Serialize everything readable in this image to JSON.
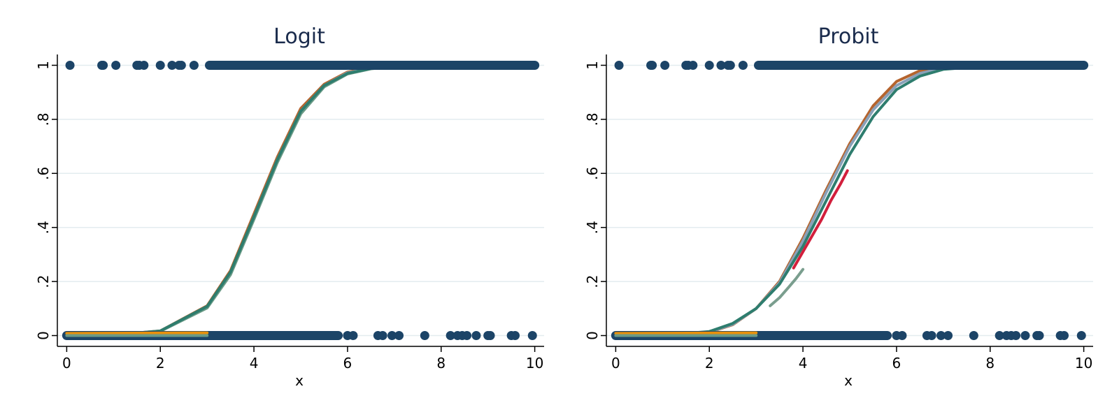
{
  "colors": {
    "background": "#ffffff",
    "grid": "#e3ecef",
    "points": "#1c4467",
    "title": "#1a2b4c"
  },
  "chart_data": [
    {
      "type": "scatter",
      "title": "Logit",
      "xlabel": "x",
      "ylabel": "",
      "xlim": [
        -0.2,
        10.2
      ],
      "ylim": [
        -0.04,
        1.04
      ],
      "xticks": [
        0,
        2,
        4,
        6,
        8,
        10
      ],
      "xtick_labels": [
        "0",
        "2",
        "4",
        "6",
        "8",
        "10"
      ],
      "yticks": [
        0,
        0.2,
        0.4,
        0.6,
        0.8,
        1
      ],
      "ytick_labels": [
        "0",
        ".2",
        ".4",
        ".6",
        ".8",
        "1"
      ],
      "grid": true,
      "points": {
        "color": "#1c4467",
        "y1_isolated_x": [
          0.07,
          0.75,
          0.78,
          1.05,
          1.5,
          1.55,
          1.65,
          2.0,
          2.25,
          2.4,
          2.45,
          2.72
        ],
        "y1_dense_range": [
          3.05,
          10.0
        ],
        "y0_dense_range": [
          0.0,
          5.8
        ],
        "y0_isolated_x": [
          6.0,
          6.12,
          6.65,
          6.75,
          6.95,
          7.1,
          7.65,
          8.2,
          8.35,
          8.45,
          8.55,
          8.75,
          9.0,
          9.05,
          9.5,
          9.58,
          9.95
        ]
      },
      "series": [
        {
          "color": "#b5642e",
          "x": [
            0,
            1,
            2,
            3,
            3.5,
            4,
            4.5,
            5,
            5.5,
            6,
            6.5,
            7,
            8,
            10
          ],
          "y": [
            0.0003,
            0.0025,
            0.017,
            0.11,
            0.24,
            0.45,
            0.66,
            0.84,
            0.93,
            0.975,
            0.99,
            0.996,
            0.9995,
            1.0
          ]
        },
        {
          "color": "#8aa0b8",
          "x": [
            0,
            1,
            2,
            3,
            3.5,
            4,
            4.5,
            5,
            5.5,
            6,
            6.5,
            7,
            8,
            10
          ],
          "y": [
            0.0003,
            0.0024,
            0.016,
            0.105,
            0.23,
            0.44,
            0.65,
            0.83,
            0.925,
            0.972,
            0.989,
            0.996,
            0.9995,
            1.0
          ]
        },
        {
          "color": "#6a9a86",
          "x": [
            0,
            1,
            2,
            3,
            3.5,
            4,
            4.5,
            5,
            5.5,
            6,
            6.5,
            7,
            8,
            10
          ],
          "y": [
            0.0003,
            0.0023,
            0.016,
            0.102,
            0.225,
            0.43,
            0.64,
            0.82,
            0.92,
            0.968,
            0.987,
            0.995,
            0.9994,
            1.0
          ]
        },
        {
          "color": "#2e7d6e",
          "x": [
            0,
            1,
            2,
            3,
            3.5,
            4,
            4.5,
            5,
            5.5,
            6,
            6.5,
            7,
            8,
            10
          ],
          "y": [
            0.0003,
            0.0025,
            0.017,
            0.108,
            0.235,
            0.44,
            0.65,
            0.83,
            0.925,
            0.97,
            0.988,
            0.995,
            0.9993,
            1.0
          ]
        },
        {
          "color": "#e8900c",
          "x": [
            0,
            3
          ],
          "y": [
            0.008,
            0.01
          ]
        },
        {
          "color": "#6a9a86",
          "x": [
            0,
            3
          ],
          "y": [
            0.0,
            0.0
          ]
        }
      ]
    },
    {
      "type": "scatter",
      "title": "Probit",
      "xlabel": "x",
      "ylabel": "",
      "xlim": [
        -0.2,
        10.2
      ],
      "ylim": [
        -0.04,
        1.04
      ],
      "xticks": [
        0,
        2,
        4,
        6,
        8,
        10
      ],
      "xtick_labels": [
        "0",
        "2",
        "4",
        "6",
        "8",
        "10"
      ],
      "yticks": [
        0,
        0.2,
        0.4,
        0.6,
        0.8,
        1
      ],
      "ytick_labels": [
        "0",
        ".2",
        ".4",
        ".6",
        ".8",
        "1"
      ],
      "grid": true,
      "points": {
        "color": "#1c4467",
        "y1_isolated_x": [
          0.07,
          0.75,
          0.78,
          1.05,
          1.5,
          1.55,
          1.65,
          2.0,
          2.25,
          2.4,
          2.45,
          2.72
        ],
        "y1_dense_range": [
          3.05,
          10.0
        ],
        "y0_dense_range": [
          0.0,
          5.8
        ],
        "y0_isolated_x": [
          6.0,
          6.12,
          6.65,
          6.75,
          6.95,
          7.1,
          7.65,
          8.2,
          8.35,
          8.45,
          8.55,
          8.75,
          9.0,
          9.05,
          9.5,
          9.58,
          9.95
        ]
      },
      "series": [
        {
          "color": "#b5642e",
          "x": [
            0,
            1,
            2,
            2.5,
            3,
            3.5,
            4,
            4.5,
            5,
            5.5,
            6,
            6.5,
            7,
            8,
            10
          ],
          "y": [
            0.0,
            0.0,
            0.012,
            0.04,
            0.1,
            0.2,
            0.36,
            0.54,
            0.71,
            0.85,
            0.94,
            0.98,
            0.995,
            1.0,
            1.0
          ]
        },
        {
          "color": "#8aa0b8",
          "x": [
            0,
            1,
            2,
            2.5,
            3,
            3.5,
            4,
            4.5,
            5,
            5.5,
            6,
            6.5,
            7,
            8,
            10
          ],
          "y": [
            0.0,
            0.001,
            0.013,
            0.042,
            0.1,
            0.195,
            0.35,
            0.53,
            0.7,
            0.835,
            0.925,
            0.97,
            0.99,
            0.999,
            1.0
          ]
        },
        {
          "color": "#2e7d6e",
          "x": [
            0,
            1,
            2,
            2.5,
            3,
            3.5,
            4,
            4.5,
            5,
            5.5,
            6,
            6.5,
            7,
            8,
            10
          ],
          "y": [
            0.0,
            0.001,
            0.015,
            0.045,
            0.1,
            0.19,
            0.33,
            0.5,
            0.67,
            0.81,
            0.91,
            0.96,
            0.985,
            0.998,
            1.0
          ]
        },
        {
          "color": "#d21f3c",
          "x": [
            3.8,
            4.0,
            4.2,
            4.4,
            4.6,
            4.8,
            4.95
          ],
          "y": [
            0.25,
            0.31,
            0.37,
            0.43,
            0.5,
            0.56,
            0.61
          ]
        },
        {
          "color": "#7a9e8e",
          "x": [
            3.3,
            3.5,
            3.7,
            3.85,
            4.0
          ],
          "y": [
            0.11,
            0.14,
            0.18,
            0.21,
            0.245
          ]
        },
        {
          "color": "#e8900c",
          "x": [
            0,
            3
          ],
          "y": [
            0.008,
            0.01
          ]
        },
        {
          "color": "#6a9a86",
          "x": [
            0,
            3
          ],
          "y": [
            0.0,
            0.0
          ]
        }
      ]
    }
  ]
}
